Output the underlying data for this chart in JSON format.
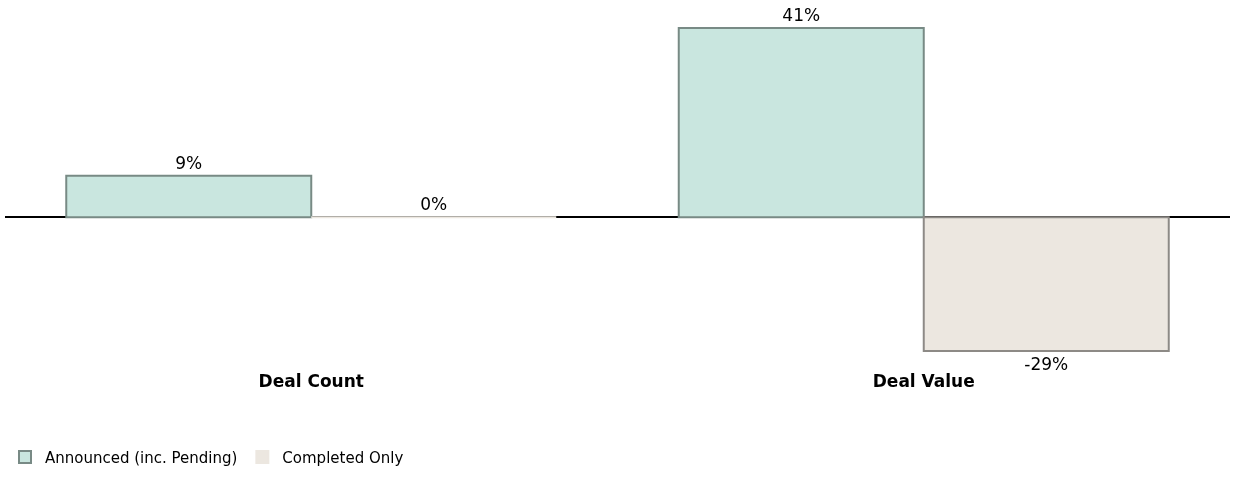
{
  "chart_data": {
    "type": "bar",
    "categories": [
      "Deal Count",
      "Deal Value"
    ],
    "series": [
      {
        "name": "Announced (inc. Pending)",
        "color": "#c9e6df",
        "values": [
          9,
          41
        ],
        "value_labels": [
          "9%",
          "41%"
        ]
      },
      {
        "name": "Completed Only",
        "color": "#ece7e0",
        "values": [
          0,
          -29
        ],
        "value_labels": [
          "0%",
          "-29%"
        ]
      }
    ],
    "legend": "bottom left"
  }
}
